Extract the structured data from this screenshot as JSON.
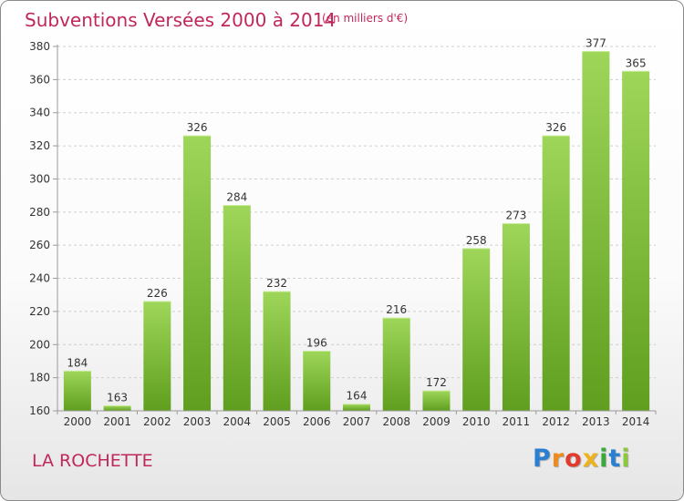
{
  "header": {
    "title": "Subventions Versées 2000 à 2014",
    "unit": "(en milliers d'€)"
  },
  "footer": {
    "location": "LA ROCHETTE",
    "brand_letters": [
      "P",
      "r",
      "o",
      "x",
      "i",
      "t",
      "i"
    ],
    "brand_colors": [
      "#2b7fd0",
      "#f08a1c",
      "#e23b2e",
      "#f0b21c",
      "#3aa83a",
      "#2b7fd0",
      "#8bc83a"
    ]
  },
  "colors": {
    "bar_top": "#9ed65a",
    "bar_bottom": "#5f9e1e",
    "grid": "#cfcfcf",
    "axis": "#9a9a9a",
    "text": "#333333",
    "accent": "#c0285a"
  },
  "chart_data": {
    "type": "bar",
    "categories": [
      "2000",
      "2001",
      "2002",
      "2003",
      "2004",
      "2005",
      "2006",
      "2007",
      "2008",
      "2009",
      "2010",
      "2011",
      "2012",
      "2013",
      "2014"
    ],
    "values": [
      184,
      163,
      226,
      326,
      284,
      232,
      196,
      164,
      216,
      172,
      258,
      273,
      326,
      377,
      365
    ],
    "title": "Subventions Versées 2000 à 2014",
    "xlabel": "",
    "ylabel": "",
    "ylim": [
      160,
      380
    ],
    "yticks": [
      160,
      180,
      200,
      220,
      240,
      260,
      280,
      300,
      320,
      340,
      360,
      380
    ],
    "grid": true,
    "legend": "none",
    "data_labels": true
  }
}
